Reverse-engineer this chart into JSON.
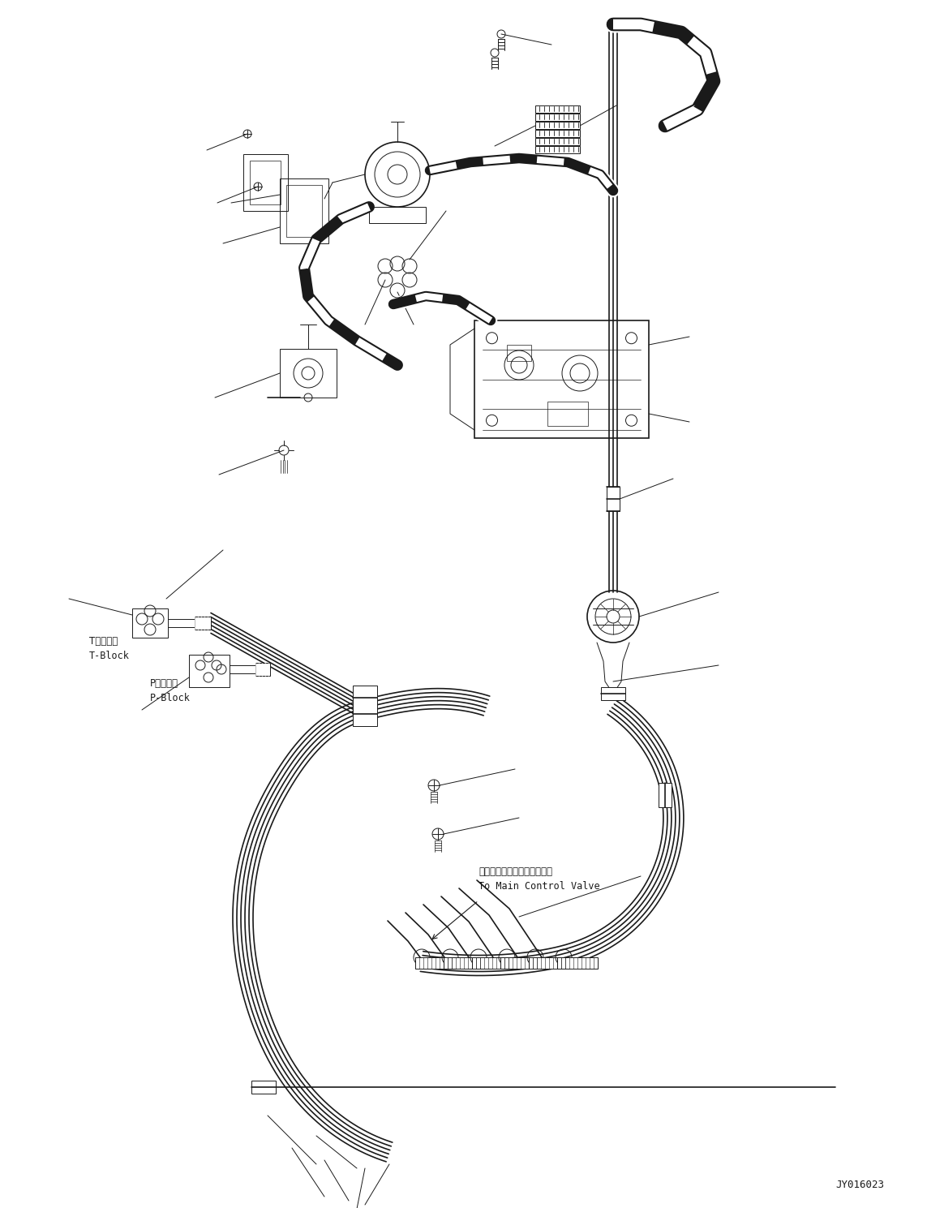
{
  "figure_width": 11.43,
  "figure_height": 14.89,
  "dpi": 100,
  "bg_color": "#ffffff",
  "line_color": "#1a1a1a",
  "part_number_code": "JY016023",
  "label_t_block_jp": "Tブロック",
  "label_t_block_en": "T-Block",
  "label_p_block_jp": "Pブロック",
  "label_p_block_en": "P-Block",
  "label_main_valve_jp": "メインコントロールバルブへ",
  "label_main_valve_en": "To Main Control Valve"
}
